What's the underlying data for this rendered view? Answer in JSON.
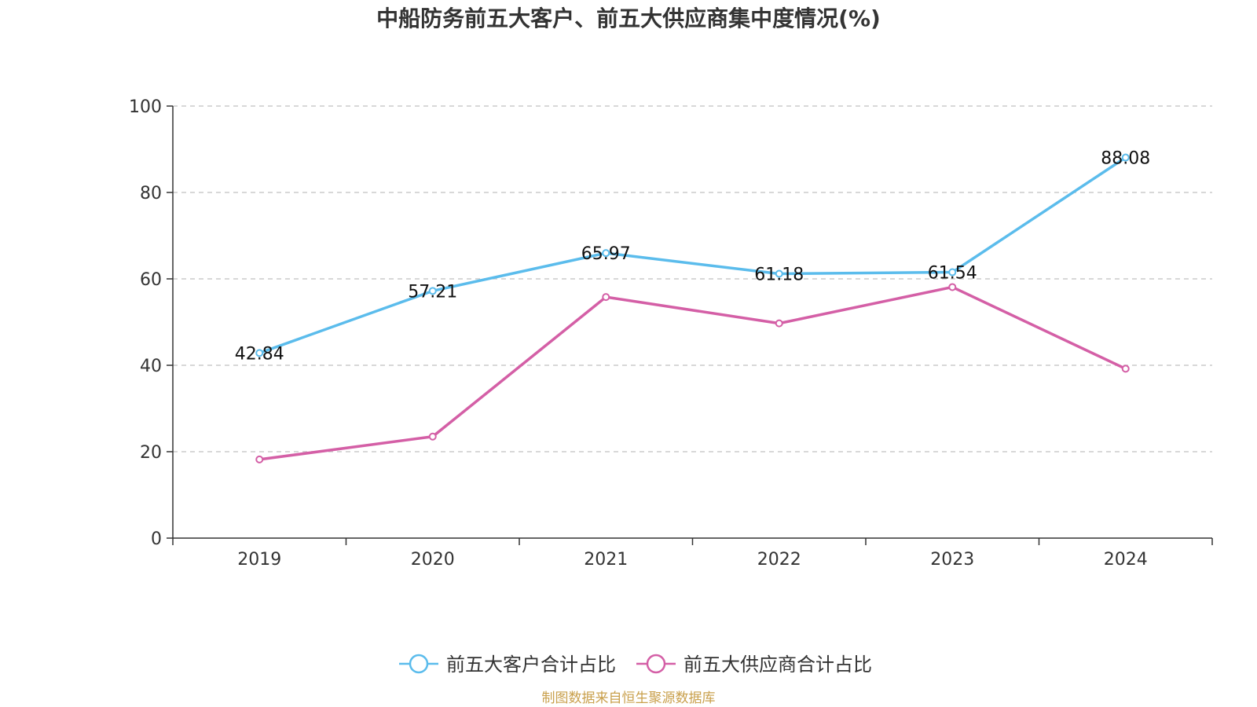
{
  "chart_data": {
    "type": "line",
    "title": "中船防务前五大客户、前五大供应商集中度情况(%)",
    "categories": [
      "2019",
      "2020",
      "2021",
      "2022",
      "2023",
      "2024"
    ],
    "ylim": [
      0,
      100
    ],
    "yticks": [
      0,
      20,
      40,
      60,
      80,
      100
    ],
    "grid": true,
    "legend_position": "bottom-center",
    "series": [
      {
        "name": "前五大客户合计占比",
        "color": "#5bbcec",
        "values": [
          42.84,
          57.21,
          65.97,
          61.18,
          61.54,
          88.08
        ],
        "show_labels": true
      },
      {
        "name": "前五大供应商合计占比",
        "color": "#d45fa6",
        "values": [
          18.2,
          23.5,
          55.8,
          49.7,
          58.1,
          39.2
        ],
        "show_labels": false
      }
    ],
    "source": "制图数据来自恒生聚源数据库"
  }
}
